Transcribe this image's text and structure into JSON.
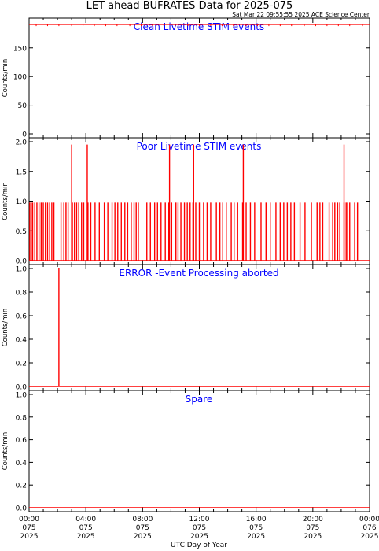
{
  "title": "LET ahead BUFRATES Data for 2025-075",
  "subtitle": "Sat Mar 22 09:55:55 2025 ACE Science Center",
  "xlabel": "UTC Day of Year",
  "x_ticks": [
    {
      "time": "00:00",
      "doy": "075",
      "year": "2025"
    },
    {
      "time": "04:00",
      "doy": "075",
      "year": "2025"
    },
    {
      "time": "08:00",
      "doy": "075",
      "year": "2025"
    },
    {
      "time": "12:00",
      "doy": "075",
      "year": "2025"
    },
    {
      "time": "16:00",
      "doy": "075",
      "year": "2025"
    },
    {
      "time": "20:00",
      "doy": "075",
      "year": "2025"
    },
    {
      "time": "00:00",
      "doy": "076",
      "year": "2025"
    }
  ],
  "colors": {
    "series": "#ff0000",
    "panel_label": "#0000ff",
    "axes": "#000000"
  },
  "chart_data": [
    {
      "type": "line",
      "panel_label": "Clean Livetime STIM events",
      "ylabel": "Counts/min",
      "yticks": [
        "0",
        "50",
        "100",
        "150"
      ],
      "ylim": [
        0,
        195
      ],
      "xlim_hours": [
        0,
        24
      ],
      "series": [
        {
          "level": 191,
          "spikes_x": [],
          "spike_peak": 191,
          "dips_x": [
            0.5,
            1.3,
            2.1,
            3.0,
            3.8,
            4.6,
            5.4,
            6.2,
            7.1,
            7.9,
            8.7,
            9.5,
            10.3,
            11.2,
            12.0,
            12.8,
            13.6,
            14.4,
            15.3,
            16.1,
            16.9,
            17.7,
            18.5,
            19.4,
            20.2,
            21.0,
            21.8,
            22.6,
            23.5
          ],
          "dip_level": 188
        }
      ]
    },
    {
      "type": "line",
      "panel_label": "Poor Livetime STIM events",
      "ylabel": "Counts/min",
      "yticks": [
        "0.0",
        "0.5",
        "1.0",
        "1.5",
        "2.0"
      ],
      "ylim": [
        0,
        2.05
      ],
      "xlim_hours": [
        0,
        24
      ],
      "series": [
        {
          "level": 0,
          "spike_peak": 1,
          "spikes_x": [
            0.05,
            0.15,
            0.25,
            0.4,
            0.55,
            0.7,
            0.85,
            1.0,
            1.15,
            1.3,
            1.45,
            1.6,
            1.75,
            2.25,
            2.45,
            2.6,
            2.75,
            3.05,
            3.2,
            3.35,
            3.5,
            3.7,
            3.85,
            4.15,
            4.35,
            4.65,
            4.95,
            5.3,
            5.55,
            5.85,
            6.05,
            6.25,
            6.5,
            6.75,
            6.95,
            7.2,
            7.4,
            7.55,
            7.7,
            8.3,
            8.55,
            8.85,
            9.05,
            9.3,
            9.6,
            9.85,
            10.05,
            10.35,
            10.5,
            10.7,
            10.95,
            11.15,
            11.35,
            11.55,
            11.75,
            12.0,
            12.3,
            12.55,
            12.8,
            13.2,
            13.45,
            13.65,
            13.9,
            14.25,
            14.45,
            14.7,
            15.05,
            15.3,
            15.6,
            15.9,
            16.35,
            16.7,
            17.0,
            17.4,
            17.7,
            17.95,
            18.2,
            18.45,
            18.7,
            19.1,
            19.45,
            19.9,
            20.3,
            20.5,
            20.7,
            21.15,
            21.4,
            21.55,
            21.75,
            21.9,
            22.2,
            22.35,
            22.45,
            22.6,
            22.95,
            23.15
          ],
          "dips_x": [],
          "dip_level": 0,
          "big_spikes_x": [
            3.0,
            4.1,
            9.9,
            11.6,
            15.1,
            22.2
          ],
          "big_spike_peak": 2
        }
      ]
    },
    {
      "type": "line",
      "panel_label": "ERROR -Event Processing aborted",
      "ylabel": "Counts/min",
      "yticks": [
        "0.0",
        "0.2",
        "0.4",
        "0.6",
        "0.8",
        "1.0"
      ],
      "ylim": [
        0,
        1.0
      ],
      "xlim_hours": [
        0,
        24
      ],
      "series": [
        {
          "level": 0,
          "spike_peak": 1,
          "spikes_x": [
            2.1
          ],
          "dips_x": [],
          "dip_level": 0
        }
      ]
    },
    {
      "type": "line",
      "panel_label": "Spare",
      "ylabel": "Counts/min",
      "yticks": [
        "0.0",
        "0.2",
        "0.4",
        "0.6",
        "0.8",
        "1.0"
      ],
      "ylim": [
        0,
        1.0
      ],
      "xlim_hours": [
        0,
        24
      ],
      "series": [
        {
          "level": 0,
          "spike_peak": 0,
          "spikes_x": [],
          "dips_x": [],
          "dip_level": 0
        }
      ]
    }
  ]
}
